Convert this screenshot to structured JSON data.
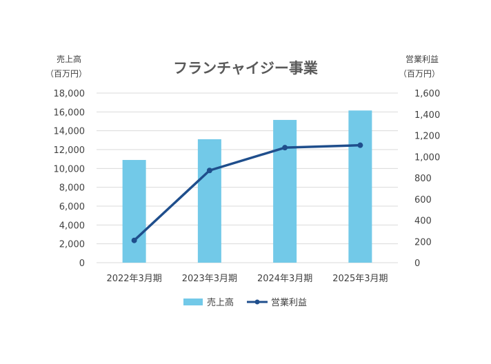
{
  "chart_data": {
    "type": "bar",
    "title": "フランチャイジー事業",
    "categories": [
      "2022年3月期",
      "2023年3月期",
      "2024年3月期",
      "2025年3月期"
    ],
    "series": [
      {
        "name": "売上高",
        "type": "bar",
        "axis": "left",
        "color": "#72C9E8",
        "values": [
          10900,
          13100,
          15150,
          16150
        ]
      },
      {
        "name": "営業利益",
        "type": "line",
        "axis": "right",
        "color": "#1F4E8C",
        "values": [
          210,
          870,
          1085,
          1108
        ]
      }
    ],
    "y_left": {
      "label_line1": "売上高",
      "label_line2": "（百万円）",
      "min": 0,
      "max": 18000,
      "step": 2000,
      "tick_labels": [
        "0",
        "2,000",
        "4,000",
        "6,000",
        "8,000",
        "10,000",
        "12,000",
        "14,000",
        "16,000",
        "18,000"
      ]
    },
    "y_right": {
      "label_line1": "営業利益",
      "label_line2": "（百万円）",
      "min": 0,
      "max": 1600,
      "step": 200,
      "tick_labels": [
        "0",
        "200",
        "400",
        "600",
        "800",
        "1,000",
        "1,200",
        "1,400",
        "1,600"
      ]
    },
    "grid": true,
    "gridline_color": "#D9D9D9",
    "legend_position": "bottom",
    "legend": [
      {
        "name": "売上高",
        "kind": "bar"
      },
      {
        "name": "営業利益",
        "kind": "line"
      }
    ]
  }
}
